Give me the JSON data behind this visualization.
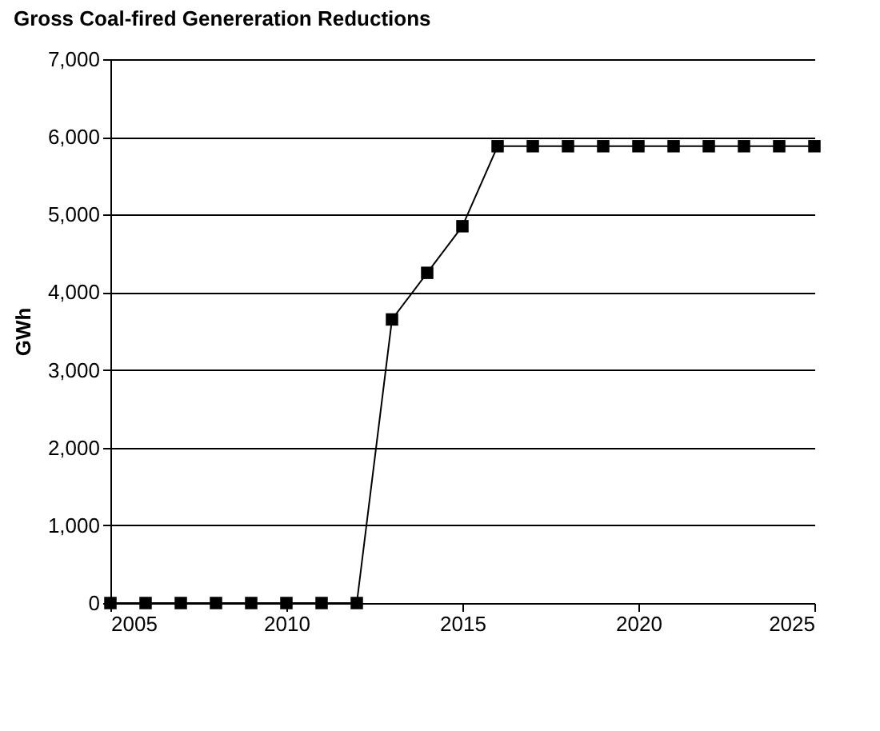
{
  "chart_data": {
    "type": "line",
    "title": "Gross Coal-fired Genereration Reductions",
    "ylabel": "GWh",
    "x": [
      2005,
      2006,
      2007,
      2008,
      2009,
      2010,
      2011,
      2012,
      2013,
      2014,
      2015,
      2016,
      2017,
      2018,
      2019,
      2020,
      2021,
      2022,
      2023,
      2024,
      2025
    ],
    "series": [
      {
        "color": "#000000",
        "values": [
          0,
          0,
          0,
          0,
          0,
          0,
          0,
          0,
          3650,
          4250,
          4850,
          5880,
          5880,
          5880,
          5880,
          5880,
          5880,
          5880,
          5880,
          5880,
          5880
        ]
      }
    ],
    "xlim": [
      2005,
      2025
    ],
    "xticks": [
      2005,
      2010,
      2015,
      2020,
      2025
    ],
    "ylim": [
      0,
      7000
    ],
    "yticks": [
      0,
      {
        "value": 1000,
        "label": "1,000"
      },
      {
        "value": 2000,
        "label": "2,000"
      },
      {
        "value": 3000,
        "label": "3,000"
      },
      {
        "value": 4000,
        "label": "4,000"
      },
      {
        "value": 5000,
        "label": "5,000"
      },
      {
        "value": 6000,
        "label": "6,000"
      },
      {
        "value": 7000,
        "label": "7,000"
      }
    ],
    "grid": "y",
    "marker": "square",
    "line_style": "solid"
  }
}
